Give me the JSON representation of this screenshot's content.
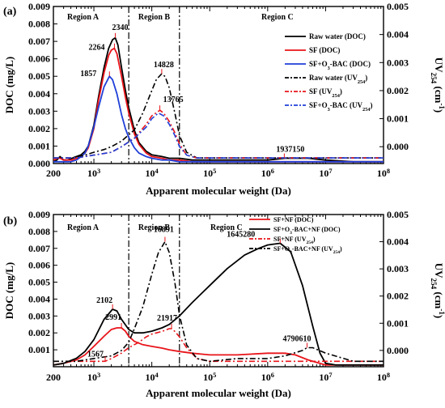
{
  "colors": {
    "raw": "#000000",
    "sf": "#e8141a",
    "bac": "#1f3fd8",
    "nf": "#e8141a",
    "bacnf": "#000000"
  },
  "chart_data": [
    {
      "panel": "(a)",
      "type": "line",
      "x_scale": "log",
      "xlim": [
        200,
        100000000
      ],
      "x_ticks": [
        {
          "v": 200,
          "label": "200"
        },
        {
          "v": 1000,
          "label": "10",
          "exp": "3"
        },
        {
          "v": 10000,
          "label": "10",
          "exp": "4"
        },
        {
          "v": 100000,
          "label": "10",
          "exp": "5"
        },
        {
          "v": 1000000,
          "label": "10",
          "exp": "6"
        },
        {
          "v": 10000000,
          "label": "10",
          "exp": "7"
        },
        {
          "v": 100000000,
          "label": "10",
          "exp": "8"
        }
      ],
      "xlabel": "Apparent molecular weight (Da)",
      "ylabel_left": "DOC (mg/L)",
      "ylabel_right": "UV",
      "ylabel_right_sub": "254",
      "ylabel_right_unit": " (cm",
      "ylabel_right_unit_sup": "-1",
      "ylabel_right_close": ")",
      "ylim_left": [
        0,
        0.009
      ],
      "yticks_left": [
        "0.000",
        "0.001",
        "0.002",
        "0.003",
        "0.004",
        "0.005",
        "0.006",
        "0.007",
        "0.008",
        "0.009"
      ],
      "ylim_right": [
        -0.0006,
        0.005
      ],
      "yticks_right": [
        "0.000",
        "0.001",
        "0.002",
        "0.003",
        "0.004",
        "0.005"
      ],
      "region_bounds": [
        4000,
        30000
      ],
      "regions": [
        "Region A",
        "Region B",
        "Region C"
      ],
      "series": [
        {
          "name": "Raw water (DOC)",
          "axis": "left",
          "style": "solid",
          "color": "#000000",
          "x": [
            200,
            230,
            260,
            300,
            350,
            420,
            500,
            600,
            700,
            800,
            1000,
            1200,
            1500,
            1800,
            2100,
            2340,
            2600,
            3000,
            3500,
            4000,
            5000,
            6000,
            8000,
            10000,
            15000,
            20000,
            30000,
            50000,
            100000,
            300000,
            1000000,
            2000000,
            3000000,
            5000000,
            10000000,
            30000000,
            100000000
          ],
          "y": [
            0.0001,
            0.0002,
            0.0004,
            0.0002,
            0.0002,
            0.0003,
            0.0004,
            0.0005,
            0.0007,
            0.001,
            0.0022,
            0.0038,
            0.0055,
            0.0066,
            0.0071,
            0.0072,
            0.0068,
            0.0055,
            0.0042,
            0.0032,
            0.0019,
            0.0012,
            0.0007,
            0.0005,
            0.0004,
            0.0003,
            0.0003,
            0.0002,
            0.0002,
            0.0002,
            0.0002,
            0.0003,
            0.0003,
            0.0003,
            0.0002,
            0.0001,
            0.0001
          ]
        },
        {
          "name": "SF (DOC)",
          "axis": "left",
          "style": "solid",
          "color": "#e8141a",
          "x": [
            200,
            230,
            260,
            300,
            350,
            420,
            500,
            600,
            700,
            800,
            1000,
            1200,
            1500,
            1800,
            2000,
            2264,
            2500,
            3000,
            3500,
            4000,
            5000,
            6000,
            8000,
            10000,
            15000,
            20000,
            30000,
            50000,
            100000,
            300000,
            1000000,
            3000000,
            10000000,
            100000000
          ],
          "y": [
            0.0002,
            0.0003,
            0.0003,
            0.0002,
            0.0002,
            0.0002,
            0.0003,
            0.0004,
            0.0006,
            0.0009,
            0.002,
            0.0036,
            0.0052,
            0.0062,
            0.0065,
            0.0066,
            0.0063,
            0.005,
            0.0038,
            0.0029,
            0.0017,
            0.0011,
            0.0006,
            0.0004,
            0.0003,
            0.0002,
            0.0002,
            0.0001,
            0.0001,
            0.0001,
            0.0001,
            0.0001,
            0.0001,
            0.0001
          ]
        },
        {
          "name": "SF+O3-BAC (DOC)",
          "axis": "left",
          "style": "solid",
          "color": "#1f3fd8",
          "x": [
            200,
            300,
            400,
            500,
            600,
            700,
            800,
            1000,
            1200,
            1500,
            1857,
            2100,
            2500,
            3000,
            3500,
            4000,
            5000,
            6000,
            8000,
            10000,
            15000,
            20000,
            30000,
            50000,
            100000,
            1000000,
            10000000,
            100000000
          ],
          "y": [
            0.0001,
            0.0001,
            0.0001,
            0.0002,
            0.0004,
            0.0006,
            0.001,
            0.0021,
            0.0032,
            0.0044,
            0.005,
            0.0048,
            0.004,
            0.0028,
            0.002,
            0.0015,
            0.0009,
            0.0006,
            0.0004,
            0.0003,
            0.0002,
            0.0002,
            0.0001,
            0.0001,
            0.0001,
            0.0001,
            0.0001,
            0.0001
          ]
        },
        {
          "name": "Raw water (UV254)",
          "axis": "right",
          "style": "dashdot",
          "color": "#000000",
          "x": [
            200,
            400,
            700,
            1000,
            1500,
            2000,
            3000,
            5000,
            7000,
            10000,
            12000,
            14828,
            17000,
            20000,
            25000,
            30000,
            40000,
            60000,
            100000,
            1000000,
            10000000,
            100000000
          ],
          "y": [
            -0.0004,
            -0.0004,
            -0.0003,
            -0.0002,
            -0.0001,
            0.0,
            0.0002,
            0.0006,
            0.0012,
            0.002,
            0.0024,
            0.0026,
            0.0025,
            0.0021,
            0.0012,
            0.0004,
            -0.0002,
            -0.0004,
            -0.0004,
            -0.0004,
            -0.0004,
            -0.0004
          ]
        },
        {
          "name": "SF (UV254)",
          "axis": "right",
          "style": "dashdot",
          "color": "#e8141a",
          "x": [
            200,
            500,
            1000,
            2000,
            3000,
            5000,
            8000,
            10000,
            13765,
            16000,
            20000,
            25000,
            30000,
            40000,
            60000,
            100000,
            1000000,
            100000000
          ],
          "y": [
            -0.0004,
            -0.0004,
            -0.0003,
            -0.0002,
            0.0,
            0.0003,
            0.0008,
            0.0011,
            0.0013,
            0.0012,
            0.0009,
            0.0005,
            0.0001,
            -0.0003,
            -0.0004,
            -0.0004,
            -0.0004,
            -0.0004
          ]
        },
        {
          "name": "SF+O3-BAC (UV254)",
          "axis": "right",
          "style": "dashdot",
          "color": "#1f3fd8",
          "x": [
            200,
            500,
            1000,
            2000,
            3000,
            5000,
            8000,
            10000,
            13000,
            16000,
            20000,
            25000,
            30000,
            40000,
            60000,
            100000,
            1000000,
            100000000
          ],
          "y": [
            -0.0004,
            -0.0004,
            -0.0003,
            -0.0002,
            0.0,
            0.0003,
            0.0007,
            0.001,
            0.0012,
            0.0011,
            0.0008,
            0.0004,
            0.0,
            -0.0003,
            -0.0004,
            -0.0004,
            -0.0004,
            -0.0004
          ]
        }
      ],
      "annotations": [
        {
          "text": "2340",
          "x": 2340,
          "axis": "left",
          "y": 0.0072,
          "dy": -10,
          "dx": -4
        },
        {
          "text": "2264",
          "x": 2264,
          "axis": "left",
          "y": 0.0066,
          "dy": 2,
          "dx": -32
        },
        {
          "text": "1857",
          "x": 1857,
          "axis": "left",
          "y": 0.005,
          "dy": 0,
          "dx": -36
        },
        {
          "text": "14828",
          "x": 14828,
          "axis": "right",
          "y": 0.0026,
          "dy": -8,
          "dx": -10
        },
        {
          "text": "13765",
          "x": 13765,
          "axis": "right",
          "y": 0.0013,
          "dy": -10,
          "dx": 4
        },
        {
          "text": "1937150",
          "x": 1937150,
          "axis": "left",
          "y": 0.0003,
          "dy": -8,
          "dx": -10
        }
      ],
      "legend": [
        {
          "label": "Raw water (DOC)",
          "style": "solid",
          "color": "#000000"
        },
        {
          "label": "SF (DOC)",
          "style": "solid",
          "color": "#e8141a"
        },
        {
          "label": "SF+O",
          "sub": "3",
          "rest": "-BAC (DOC)",
          "style": "solid",
          "color": "#1f3fd8"
        },
        {
          "label": "Raw water (UV",
          "sub": "254",
          "rest": ")",
          "style": "dashdot",
          "color": "#000000"
        },
        {
          "label": "SF (UV",
          "sub": "254",
          "rest": ")",
          "style": "dashdot",
          "color": "#e8141a"
        },
        {
          "label": "SF+O",
          "sub": "3",
          "rest": "-BAC (UV",
          "sub2": "254",
          "rest2": ")",
          "style": "dashdot",
          "color": "#1f3fd8"
        }
      ]
    },
    {
      "panel": "(b)",
      "type": "line",
      "x_scale": "log",
      "xlim": [
        200,
        100000000
      ],
      "x_ticks": [
        {
          "v": 200,
          "label": "200"
        },
        {
          "v": 1000,
          "label": "10",
          "exp": "3"
        },
        {
          "v": 10000,
          "label": "10",
          "exp": "4"
        },
        {
          "v": 100000,
          "label": "10",
          "exp": "5"
        },
        {
          "v": 1000000,
          "label": "10",
          "exp": "6"
        },
        {
          "v": 10000000,
          "label": "10",
          "exp": "7"
        },
        {
          "v": 100000000,
          "label": "10",
          "exp": "8"
        }
      ],
      "xlabel": "Apparent molecular weight (Da)",
      "ylabel_left": "DOC (mg/L)",
      "ylabel_right": "UV",
      "ylabel_right_sub": "254",
      "ylabel_right_unit": " (cm",
      "ylabel_right_unit_sup": "-1",
      "ylabel_right_close": ")",
      "ylim_left": [
        0,
        0.009
      ],
      "yticks_left": [
        "0.001",
        "0.002",
        "0.003",
        "0.004",
        "0.005",
        "0.006",
        "0.007",
        "0.008",
        "0.009"
      ],
      "ylim_right": [
        -0.0006,
        0.005
      ],
      "yticks_right": [
        "0.000",
        "0.001",
        "0.002",
        "0.003",
        "0.004",
        "0.005"
      ],
      "region_bounds": [
        4000,
        30000
      ],
      "regions": [
        "Region A",
        "Region B",
        "Region C"
      ],
      "series": [
        {
          "name": "SF+NF (DOC)",
          "axis": "left",
          "style": "solid",
          "color": "#e8141a",
          "x": [
            200,
            300,
            500,
            700,
            1000,
            1500,
            2000,
            2500,
            2991,
            3500,
            4000,
            5000,
            7000,
            10000,
            15000,
            20000,
            30000,
            50000,
            100000,
            300000,
            1000000,
            2000000,
            3000000,
            5000000,
            10000000,
            100000000
          ],
          "y": [
            0.0001,
            0.0002,
            0.0004,
            0.0007,
            0.0012,
            0.0018,
            0.0022,
            0.0023,
            0.0023,
            0.0021,
            0.0018,
            0.0015,
            0.0013,
            0.0012,
            0.0011,
            0.001,
            0.0009,
            0.0008,
            0.0007,
            0.0007,
            0.0008,
            0.0008,
            0.0007,
            0.0004,
            0.0001,
            0.0001
          ]
        },
        {
          "name": "SF+O3-BAC+NF (DOC)",
          "axis": "left",
          "style": "solid",
          "color": "#000000",
          "x": [
            200,
            300,
            500,
            700,
            1000,
            1500,
            2102,
            2500,
            3000,
            4000,
            5000,
            7000,
            10000,
            15000,
            20000,
            30000,
            50000,
            100000,
            200000,
            400000,
            700000,
            1000000,
            1645280,
            2500000,
            4000000,
            6000000,
            8000000,
            10000000,
            15000000,
            30000000,
            100000000
          ],
          "y": [
            0.0001,
            0.0002,
            0.0005,
            0.0009,
            0.0016,
            0.0028,
            0.0034,
            0.0033,
            0.0028,
            0.0022,
            0.002,
            0.002,
            0.0021,
            0.0023,
            0.0025,
            0.003,
            0.0038,
            0.0048,
            0.0058,
            0.0066,
            0.007,
            0.0072,
            0.0073,
            0.0068,
            0.0048,
            0.0024,
            0.0008,
            0.0002,
            0.0001,
            0.0001,
            0.0001
          ]
        },
        {
          "name": "SF+NF (UV254)",
          "axis": "right",
          "style": "dashdot",
          "color": "#e8141a",
          "x": [
            200,
            500,
            1000,
            1567,
            2000,
            3000,
            4000,
            6000,
            8000,
            10000,
            15000,
            20000,
            21917,
            25000,
            30000,
            40000,
            60000,
            100000,
            1000000,
            100000000
          ],
          "y": [
            -0.0004,
            -0.0004,
            -0.0004,
            -0.0004,
            -0.0003,
            -0.0001,
            0.0001,
            0.0003,
            0.0005,
            0.0006,
            0.0007,
            0.0008,
            0.0008,
            0.0007,
            0.0005,
            0.0001,
            -0.0003,
            -0.0004,
            -0.0004,
            -0.0004
          ]
        },
        {
          "name": "SF+O3-BAC+NF (UV254)",
          "axis": "right",
          "style": "dashdot",
          "color": "#000000",
          "x": [
            200,
            500,
            1000,
            2000,
            3000,
            4000,
            5000,
            7000,
            10000,
            13000,
            16891,
            20000,
            25000,
            30000,
            40000,
            60000,
            100000,
            300000,
            1000000,
            2000000,
            4000000,
            4790610,
            6000000,
            10000000,
            30000000,
            100000000
          ],
          "y": [
            -0.0004,
            -0.0004,
            -0.0003,
            -0.0002,
            0.0,
            0.0003,
            0.0008,
            0.0016,
            0.0028,
            0.0036,
            0.004,
            0.0036,
            0.0025,
            0.0013,
            0.0002,
            -0.0003,
            -0.0004,
            -0.0003,
            -0.0003,
            -0.0002,
            0.0,
            0.0001,
            0.0001,
            -0.0001,
            -0.0004,
            -0.0004
          ]
        }
      ],
      "annotations": [
        {
          "text": "2102",
          "x": 2102,
          "axis": "left",
          "y": 0.0034,
          "dy": -8,
          "dx": -20
        },
        {
          "text": "2991",
          "x": 2991,
          "axis": "left",
          "y": 0.0023,
          "dy": -10,
          "dx": -20
        },
        {
          "text": "1567",
          "x": 1567,
          "axis": "right",
          "y": -0.0004,
          "dy": -6,
          "dx": -22
        },
        {
          "text": "16891",
          "x": 16891,
          "axis": "right",
          "y": 0.004,
          "dy": -12,
          "dx": -14
        },
        {
          "text": "21917",
          "x": 21917,
          "axis": "right",
          "y": 0.0008,
          "dy": -10,
          "dx": -18
        },
        {
          "text": "1645280",
          "x": 1645280,
          "axis": "left",
          "y": 0.0073,
          "dy": -8,
          "dx": -66
        },
        {
          "text": "4790610",
          "x": 4790610,
          "axis": "right",
          "y": 0.0001,
          "dy": -8,
          "dx": -30
        }
      ],
      "legend": [
        {
          "label": "SF+NF (DOC)",
          "style": "solid",
          "color": "#e8141a"
        },
        {
          "label": "SF+O",
          "sub": "3",
          "rest": "-BAC+NF (DOC)",
          "style": "solid",
          "color": "#000000"
        },
        {
          "label": "SF+NF (UV",
          "sub": "254",
          "rest": ")",
          "style": "dashdot",
          "color": "#e8141a"
        },
        {
          "label": "SF+O",
          "sub": "3",
          "rest": "-BAC+NF (UV",
          "sub2": "254",
          "rest2": ")",
          "style": "dashdot",
          "color": "#000000"
        }
      ]
    }
  ]
}
